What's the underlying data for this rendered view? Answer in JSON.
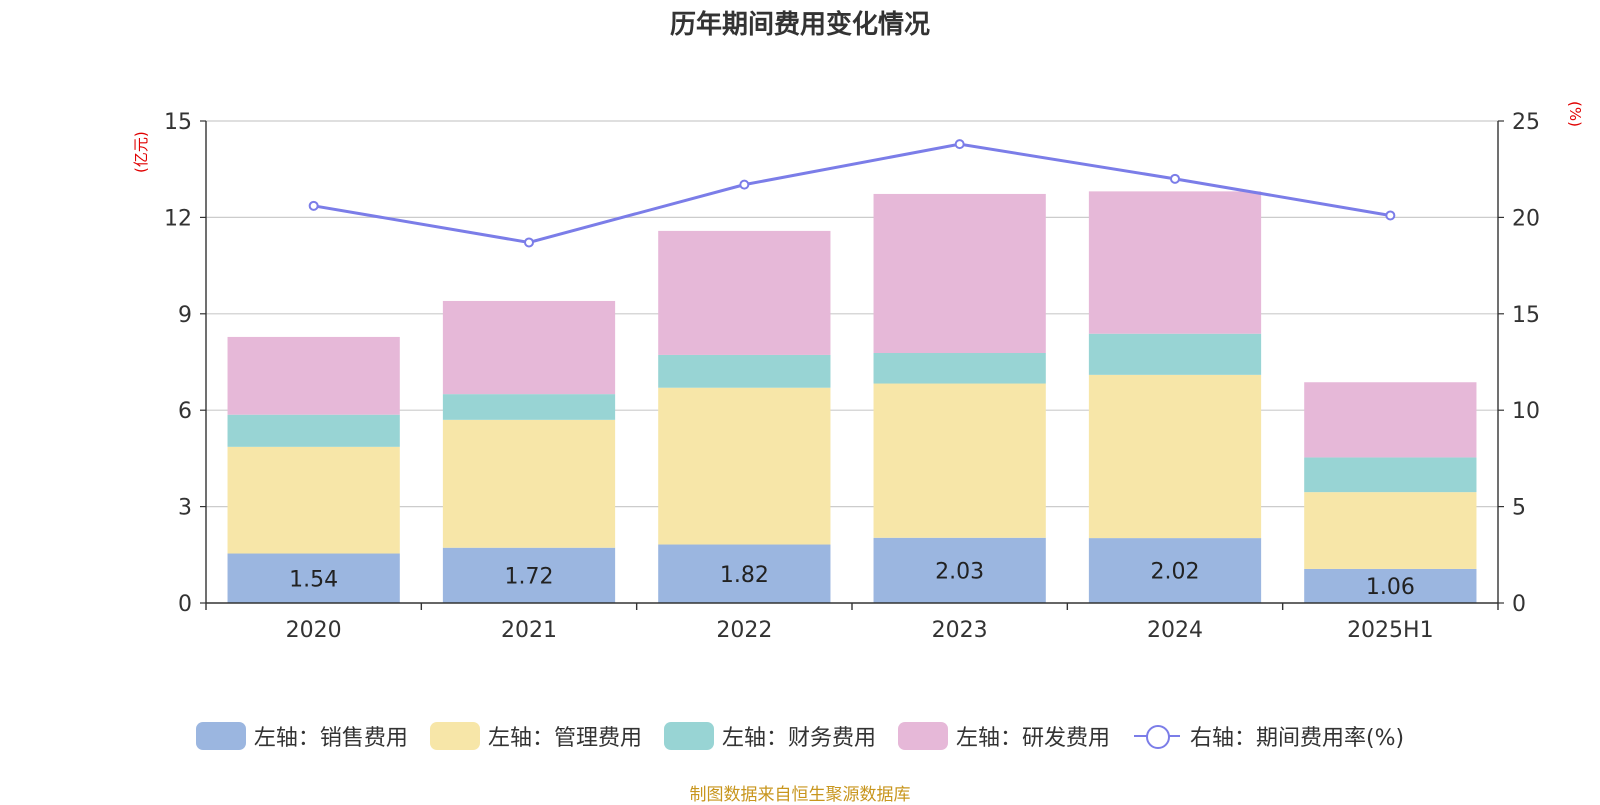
{
  "chart_data": {
    "type": "bar",
    "title": "历年期间费用变化情况",
    "categories": [
      "2020",
      "2021",
      "2022",
      "2023",
      "2024",
      "2025H1"
    ],
    "y_left": {
      "unit": "(亿元)",
      "ticks": [
        "0",
        "3",
        "6",
        "9",
        "12",
        "15"
      ],
      "min": 0,
      "max": 15
    },
    "y_right": {
      "unit": "(%)",
      "ticks": [
        "0",
        "5",
        "10",
        "15",
        "20",
        "25"
      ],
      "min": 0,
      "max": 25
    },
    "stacked": true,
    "series": [
      {
        "name": "左轴：销售费用",
        "axis": "left",
        "color": "#9bb6e0",
        "values": [
          1.54,
          1.72,
          1.82,
          2.03,
          2.02,
          1.06
        ],
        "labels": [
          "1.54",
          "1.72",
          "1.82",
          "2.03",
          "2.02",
          "1.06"
        ]
      },
      {
        "name": "左轴：管理费用",
        "axis": "left",
        "color": "#f7e6a8",
        "values": [
          3.32,
          3.98,
          4.88,
          4.8,
          5.08,
          2.39
        ]
      },
      {
        "name": "左轴：财务费用",
        "axis": "left",
        "color": "#98d4d4",
        "values": [
          1.0,
          0.8,
          1.02,
          0.95,
          1.28,
          1.08
        ]
      },
      {
        "name": "左轴：研发费用",
        "axis": "left",
        "color": "#e6b8d8",
        "values": [
          2.42,
          2.9,
          3.86,
          4.95,
          4.43,
          2.34
        ]
      },
      {
        "name": "右轴：期间费用率(%)",
        "axis": "right",
        "type": "line",
        "color": "#7b7de8",
        "values": [
          20.6,
          18.7,
          21.7,
          23.8,
          22.0,
          20.1
        ]
      }
    ],
    "grid": true,
    "legend_position": "bottom"
  },
  "source_note": "制图数据来自恒生聚源数据库"
}
